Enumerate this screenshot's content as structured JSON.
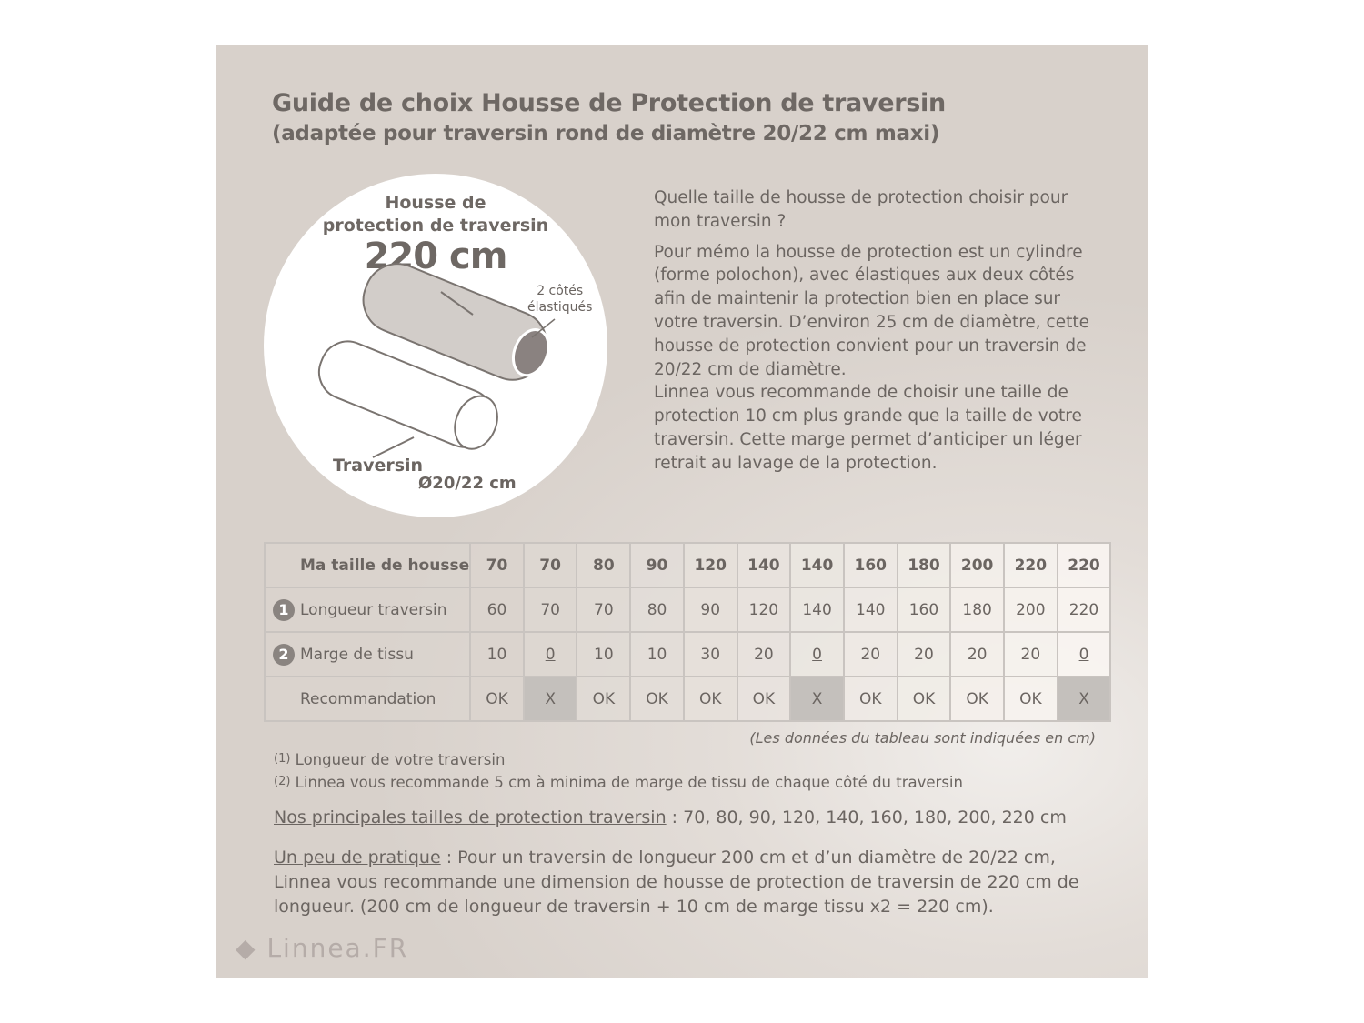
{
  "title": "Guide de choix Housse de Protection de traversin",
  "subtitle": "(adaptée pour traversin rond de diamètre 20/22 cm maxi)",
  "illustration": {
    "label_line1": "Housse de",
    "label_line2": "protection de traversin",
    "size": "220 cm",
    "elastic_line1": "2 côtés",
    "elastic_line2": "élastiqués",
    "pillow_label": "Traversin",
    "diameter": "Ø20/22 cm"
  },
  "intro": {
    "question": "Quelle taille de housse de protection choisir pour mon traversin ?",
    "body": "Pour mémo la housse de protection est un cylindre (forme polochon), avec élastiques aux deux côtés afin de maintenir la protection bien en place sur votre traversin. D’environ 25 cm de diamètre, cette housse de protection convient pour un traversin de 20/22 cm de diamètre.",
    "recommendation": "Linnea vous recommande de choisir une taille de protection 10 cm plus grande que la taille de votre traversin. Cette marge permet d’anticiper un léger retrait au lavage de la protection."
  },
  "table": {
    "rows": [
      {
        "label": "Ma taille de housse",
        "num": "",
        "cells": [
          "70",
          "70",
          "80",
          "90",
          "120",
          "140",
          "140",
          "160",
          "180",
          "200",
          "220",
          "220"
        ]
      },
      {
        "label": "Longueur traversin",
        "num": "1",
        "cells": [
          "60",
          "70",
          "70",
          "80",
          "90",
          "120",
          "140",
          "140",
          "160",
          "180",
          "200",
          "220"
        ]
      },
      {
        "label": "Marge de tissu",
        "num": "2",
        "cells": [
          "10",
          "0",
          "10",
          "10",
          "30",
          "20",
          "0",
          "20",
          "20",
          "20",
          "20",
          "0"
        ]
      },
      {
        "label": "Recommandation",
        "num": "",
        "cells": [
          "OK",
          "X",
          "OK",
          "OK",
          "OK",
          "OK",
          "X",
          "OK",
          "OK",
          "OK",
          "OK",
          "X"
        ]
      }
    ],
    "unit_note": "(Les données du tableau sont indiquées en cm)"
  },
  "notes": [
    {
      "num": "(1)",
      "text": "Longueur de votre traversin"
    },
    {
      "num": "(2)",
      "text": "Linnea vous recommande 5 cm à minima de marge de tissu de chaque côté du traversin"
    }
  ],
  "sizes": {
    "label": "Nos principales tailles de protection traversin",
    "text": " : 70, 80, 90, 120, 140, 160, 180, 200, 220 cm"
  },
  "practice": {
    "label": "Un peu de pratique",
    "text": " : Pour un traversin de longueur 200 cm et d’un diamètre de 20/22 cm, Linnea vous recommande une dimension de housse de protection de traversin de 220 cm de longueur. (200 cm de longueur de traversin + 10 cm de marge tissu  x2 = 220 cm)."
  },
  "logo": "Linnea.FR"
}
